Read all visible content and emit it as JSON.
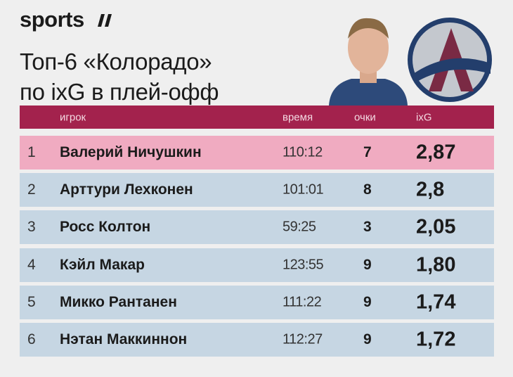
{
  "header": {
    "brand": "sports",
    "title_lines": [
      "Топ-6 «Колорадо»",
      "по ixG в плей-офф"
    ]
  },
  "table": {
    "columns": [
      "игрок",
      "время",
      "очки",
      "ixG"
    ],
    "rows": [
      [
        "1",
        "Валерий Ничушкин",
        "110:12",
        "7",
        "2,87"
      ],
      [
        "2",
        "Арттури Лехконен",
        "101:01",
        "8",
        "2,8"
      ],
      [
        "3",
        "Росс Колтон",
        "59:25",
        "3",
        "2,05"
      ],
      [
        "4",
        "Кэйл Макар",
        "123:55",
        "9",
        "1,80"
      ],
      [
        "5",
        "Микко Рантанен",
        "111:22",
        "9",
        "1,74"
      ],
      [
        "6",
        "Нэтан Маккиннон",
        "112:27",
        "9",
        "1,72"
      ]
    ]
  }
}
